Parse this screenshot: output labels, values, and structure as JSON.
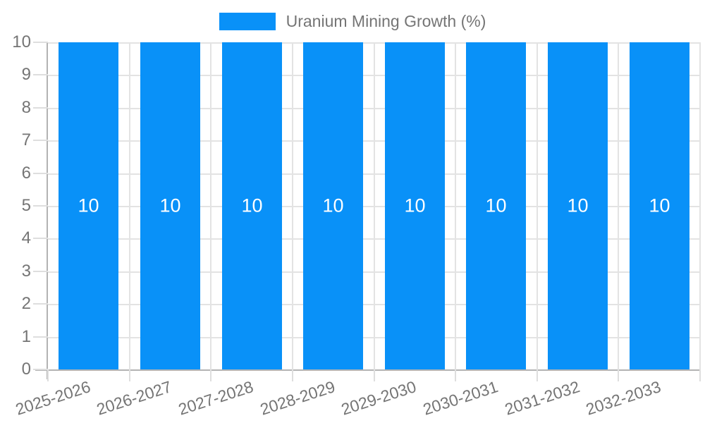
{
  "legend": {
    "label": "Uranium Mining Growth (%)",
    "swatch_color": "#0991f8"
  },
  "chart_data": {
    "type": "bar",
    "title": "Uranium Mining Growth (%)",
    "categories": [
      "2025-2026",
      "2026-2027",
      "2027-2028",
      "2028-2029",
      "2029-2030",
      "2030-2031",
      "2031-2032",
      "2032-2033"
    ],
    "series": [
      {
        "name": "Uranium Mining Growth (%)",
        "values": [
          10,
          10,
          10,
          10,
          10,
          10,
          10,
          10
        ],
        "bar_labels": [
          "10",
          "10",
          "10",
          "10",
          "10",
          "10",
          "10",
          "10"
        ]
      }
    ],
    "xlabel": "",
    "ylabel": "",
    "ylim": [
      0,
      10
    ],
    "y_ticks": [
      0,
      1,
      2,
      3,
      4,
      5,
      6,
      7,
      8,
      9,
      10
    ],
    "grid": true,
    "legend_position": "top",
    "colors": {
      "bar": "#0991f8",
      "bar_label": "#ffffff",
      "axis_text": "#757575",
      "gridline": "#e3e3e3",
      "axis_line": "#b3b3b3",
      "tick_mark": "#dedede",
      "background": "#ffffff"
    }
  }
}
